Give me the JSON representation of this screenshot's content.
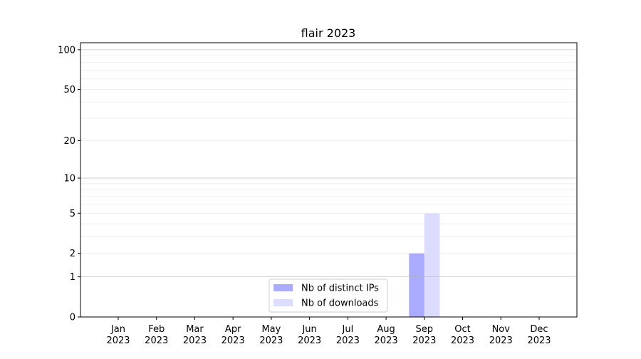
{
  "chart_data": {
    "type": "bar",
    "title": "flair 2023",
    "xlabel": "",
    "ylabel": "",
    "yscale": "log(1+y)",
    "ylim": [
      0,
      113
    ],
    "yticks": [
      0,
      1,
      2,
      5,
      10,
      20,
      50,
      100
    ],
    "grid": true,
    "legend_position": "bottom-center",
    "categories": [
      "Jan\n2023",
      "Feb\n2023",
      "Mar\n2023",
      "Apr\n2023",
      "May\n2023",
      "Jun\n2023",
      "Jul\n2023",
      "Aug\n2023",
      "Sep\n2023",
      "Oct\n2023",
      "Nov\n2023",
      "Dec\n2023"
    ],
    "series": [
      {
        "name": "Nb of distinct IPs",
        "color": "#aaaaff",
        "values": [
          0,
          0,
          0,
          0,
          0,
          0,
          0,
          0,
          2,
          0,
          0,
          0
        ]
      },
      {
        "name": "Nb of downloads",
        "color": "#dcdcff",
        "values": [
          0,
          0,
          0,
          0,
          0,
          0,
          0,
          0,
          5,
          0,
          0,
          0
        ]
      }
    ]
  }
}
